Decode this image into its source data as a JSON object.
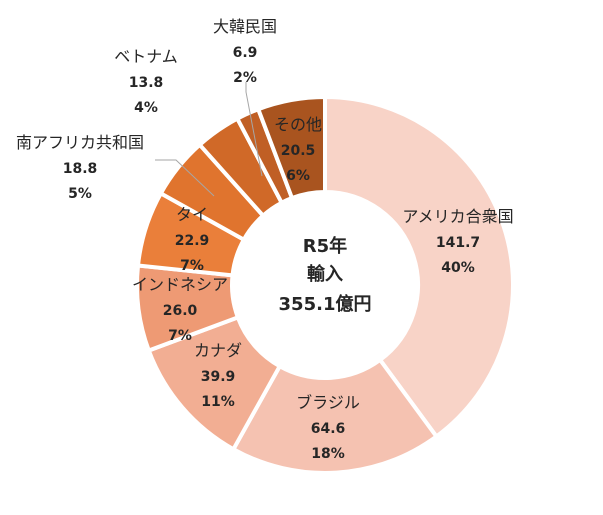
{
  "chart_data": {
    "type": "pie",
    "center_label": [
      "R5年",
      "輸入",
      "355.1億円"
    ],
    "slices": [
      {
        "label": "アメリカ合衆国",
        "value": 141.7,
        "percent": "40%",
        "color": "#F8D3C7"
      },
      {
        "label": "ブラジル",
        "value": 64.6,
        "percent": "18%",
        "color": "#F5C2B1"
      },
      {
        "label": "カナダ",
        "value": 39.9,
        "percent": "11%",
        "color": "#F2AE93"
      },
      {
        "label": "インドネシア",
        "value": 26.0,
        "percent": "7%",
        "color": "#EE9A74"
      },
      {
        "label": "タイ",
        "value": 22.9,
        "percent": "7%",
        "color": "#EA7F3A"
      },
      {
        "label": "南アフリカ共和国",
        "value": 18.8,
        "percent": "5%",
        "color": "#E0742E"
      },
      {
        "label": "ベトナム",
        "value": 13.8,
        "percent": "4%",
        "color": "#D06928"
      },
      {
        "label": "大韓民国",
        "value": 6.9,
        "percent": "2%",
        "color": "#C05F25"
      },
      {
        "label": "その他",
        "value": 20.5,
        "percent": "6%",
        "color": "#A9541F"
      }
    ]
  }
}
